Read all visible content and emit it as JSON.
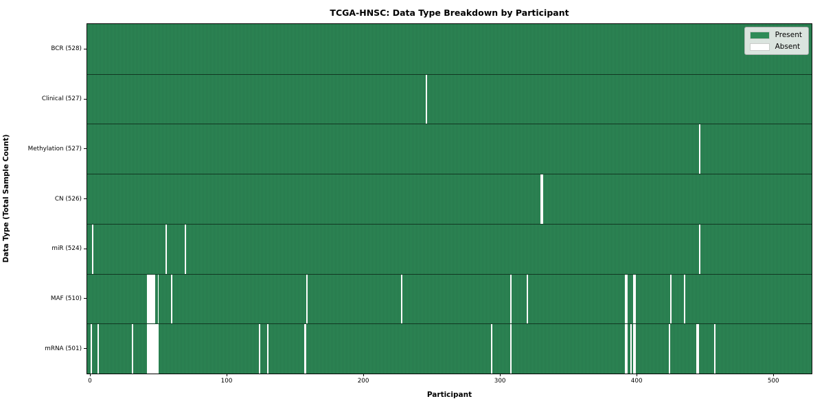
{
  "title": "TCGA-HNSC: Data Type Breakdown by Participant",
  "xlabel": "Participant",
  "ylabel": "Data Type (Total Sample Count)",
  "legend": {
    "present_label": "Present",
    "absent_label": "Absent"
  },
  "colors": {
    "present": "#2e8b57",
    "present_edge_dark": "#1e5e3c",
    "absent": "#ffffff",
    "row_separator": "rgba(10,30,18,0.75)",
    "legend_bg": "#eaedea",
    "legend_border": "#b0b0b0"
  },
  "chart_data": {
    "type": "heatmap",
    "title": "TCGA-HNSC: Data Type Breakdown by Participant",
    "xlabel": "Participant",
    "ylabel": "Data Type (Total Sample Count)",
    "legend_entries": [
      {
        "label": "Present",
        "color": "#2e8b57"
      },
      {
        "label": "Absent",
        "color": "#ffffff"
      }
    ],
    "legend_position": "upper right",
    "grid": false,
    "n_participants": 528,
    "x_axis_range": [
      -2,
      528
    ],
    "x_ticks": [
      0,
      100,
      200,
      300,
      400,
      500
    ],
    "rows": [
      {
        "label": "BCR (528)",
        "data_type": "bcr",
        "total": 528,
        "absent_participants": []
      },
      {
        "label": "Clinical (527)",
        "data_type": "clinical",
        "total": 527,
        "absent_participants": [
          246
        ]
      },
      {
        "label": "Methylation (527)",
        "data_type": "methylation",
        "total": 527,
        "absent_participants": [
          446
        ]
      },
      {
        "label": "CN (526)",
        "data_type": "cn",
        "total": 526,
        "absent_participants": [
          330,
          331
        ]
      },
      {
        "label": "miR (524)",
        "data_type": "mir",
        "total": 524,
        "absent_participants": [
          2,
          56,
          70,
          446
        ]
      },
      {
        "label": "MAF (510)",
        "data_type": "maf",
        "total": 510,
        "absent_participants": [
          42,
          43,
          44,
          45,
          46,
          47,
          50,
          60,
          159,
          228,
          308,
          320,
          392,
          393,
          398,
          399,
          425,
          435
        ]
      },
      {
        "label": "mRNA (501)",
        "data_type": "mrna",
        "total": 501,
        "absent_participants": [
          1,
          6,
          31,
          42,
          43,
          44,
          45,
          46,
          47,
          48,
          49,
          50,
          124,
          130,
          157,
          158,
          294,
          308,
          392,
          393,
          396,
          398,
          399,
          424,
          444,
          445,
          457
        ]
      }
    ]
  }
}
